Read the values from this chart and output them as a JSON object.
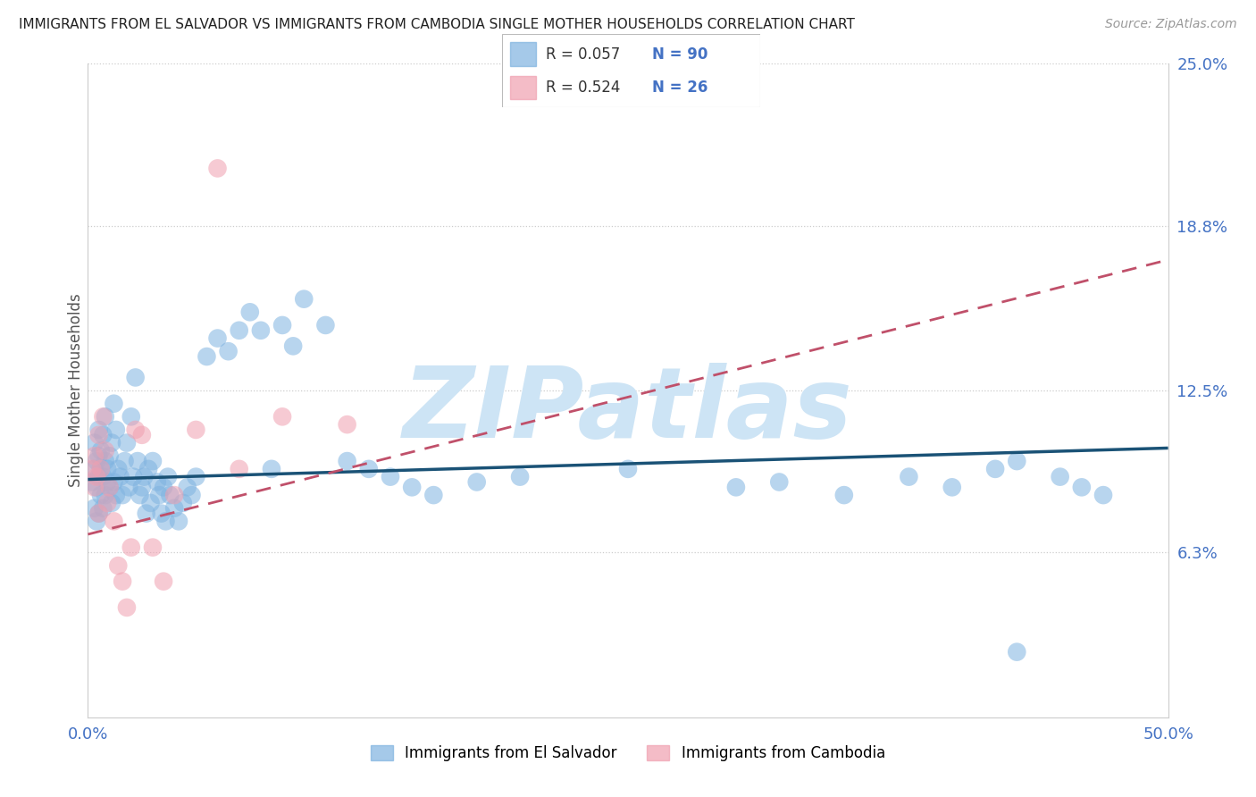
{
  "title": "IMMIGRANTS FROM EL SALVADOR VS IMMIGRANTS FROM CAMBODIA SINGLE MOTHER HOUSEHOLDS CORRELATION CHART",
  "source": "Source: ZipAtlas.com",
  "legend_labels": [
    "Immigrants from El Salvador",
    "Immigrants from Cambodia"
  ],
  "ylabel": "Single Mother Households",
  "xlim": [
    0.0,
    0.5
  ],
  "ylim": [
    0.0,
    0.25
  ],
  "ytick_labels": [
    "6.3%",
    "12.5%",
    "18.8%",
    "25.0%"
  ],
  "ytick_values": [
    0.063,
    0.125,
    0.188,
    0.25
  ],
  "legend_r1": "R = 0.057",
  "legend_n1": "N = 90",
  "legend_r2": "R = 0.524",
  "legend_n2": "N = 26",
  "blue_color": "#7fb3e0",
  "pink_color": "#f0a0b0",
  "line_blue_color": "#1a5276",
  "line_pink_color": "#c0506a",
  "watermark": "ZIPatlas",
  "watermark_color": "#cde4f5",
  "blue_x": [
    0.002,
    0.003,
    0.003,
    0.003,
    0.004,
    0.004,
    0.004,
    0.005,
    0.005,
    0.005,
    0.005,
    0.006,
    0.006,
    0.006,
    0.007,
    0.007,
    0.007,
    0.008,
    0.008,
    0.008,
    0.009,
    0.009,
    0.01,
    0.01,
    0.011,
    0.011,
    0.012,
    0.012,
    0.013,
    0.013,
    0.014,
    0.015,
    0.016,
    0.017,
    0.018,
    0.019,
    0.02,
    0.021,
    0.022,
    0.023,
    0.024,
    0.025,
    0.026,
    0.027,
    0.028,
    0.029,
    0.03,
    0.032,
    0.033,
    0.034,
    0.035,
    0.036,
    0.037,
    0.038,
    0.04,
    0.042,
    0.044,
    0.046,
    0.048,
    0.05,
    0.055,
    0.06,
    0.065,
    0.07,
    0.075,
    0.08,
    0.085,
    0.09,
    0.095,
    0.1,
    0.11,
    0.12,
    0.13,
    0.14,
    0.15,
    0.16,
    0.18,
    0.2,
    0.25,
    0.3,
    0.32,
    0.35,
    0.38,
    0.4,
    0.42,
    0.43,
    0.45,
    0.46,
    0.47,
    0.43
  ],
  "blue_y": [
    0.09,
    0.095,
    0.08,
    0.105,
    0.088,
    0.098,
    0.075,
    0.092,
    0.1,
    0.078,
    0.11,
    0.085,
    0.095,
    0.102,
    0.08,
    0.108,
    0.092,
    0.098,
    0.085,
    0.115,
    0.09,
    0.095,
    0.1,
    0.088,
    0.105,
    0.082,
    0.12,
    0.09,
    0.11,
    0.085,
    0.095,
    0.092,
    0.085,
    0.098,
    0.105,
    0.088,
    0.115,
    0.092,
    0.13,
    0.098,
    0.085,
    0.088,
    0.092,
    0.078,
    0.095,
    0.082,
    0.098,
    0.09,
    0.085,
    0.078,
    0.088,
    0.075,
    0.092,
    0.085,
    0.08,
    0.075,
    0.082,
    0.088,
    0.085,
    0.092,
    0.138,
    0.145,
    0.14,
    0.148,
    0.155,
    0.148,
    0.095,
    0.15,
    0.142,
    0.16,
    0.15,
    0.098,
    0.095,
    0.092,
    0.088,
    0.085,
    0.09,
    0.092,
    0.095,
    0.088,
    0.09,
    0.085,
    0.092,
    0.088,
    0.095,
    0.025,
    0.092,
    0.088,
    0.085,
    0.098
  ],
  "pink_x": [
    0.002,
    0.003,
    0.003,
    0.004,
    0.005,
    0.005,
    0.006,
    0.007,
    0.008,
    0.009,
    0.01,
    0.012,
    0.014,
    0.016,
    0.018,
    0.02,
    0.022,
    0.025,
    0.03,
    0.035,
    0.04,
    0.05,
    0.06,
    0.07,
    0.09,
    0.12
  ],
  "pink_y": [
    0.095,
    0.088,
    0.1,
    0.092,
    0.108,
    0.078,
    0.095,
    0.115,
    0.102,
    0.082,
    0.088,
    0.075,
    0.058,
    0.052,
    0.042,
    0.065,
    0.11,
    0.108,
    0.065,
    0.052,
    0.085,
    0.11,
    0.21,
    0.095,
    0.115,
    0.112
  ],
  "blue_line_x": [
    0.0,
    0.5
  ],
  "blue_line_y": [
    0.091,
    0.103
  ],
  "pink_line_x": [
    0.0,
    0.5
  ],
  "pink_line_y": [
    0.07,
    0.175
  ]
}
